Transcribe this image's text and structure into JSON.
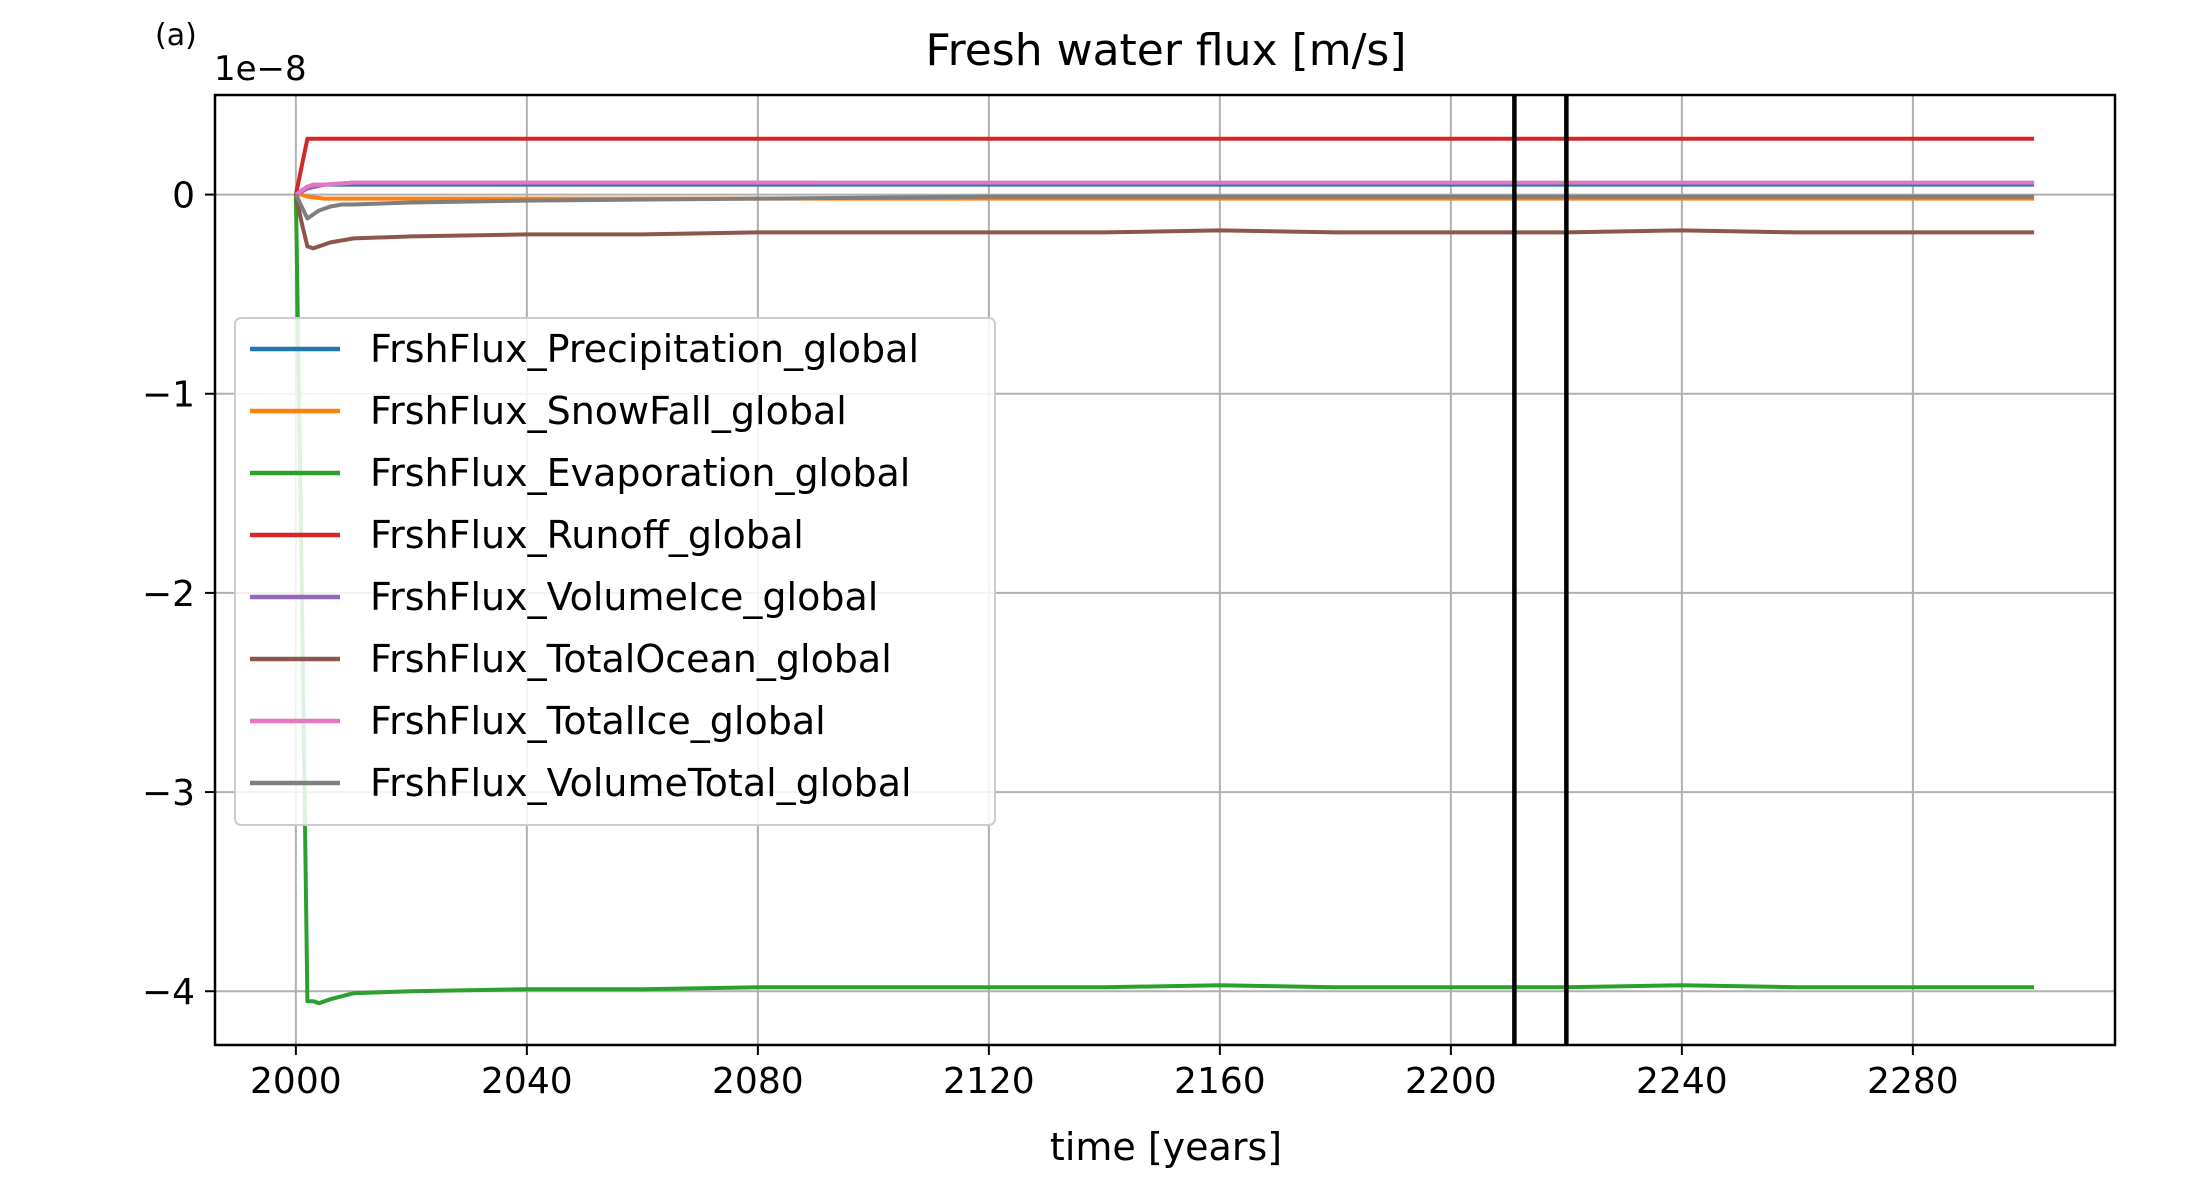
{
  "panel_label": "(a)",
  "chart_data": {
    "type": "line",
    "title": "Fresh water flux [m/s]",
    "xlabel": "time [years]",
    "ylabel": "",
    "y_multiplier": "1e−8",
    "xlim": [
      1986,
      2315
    ],
    "ylim": [
      -4.27,
      0.5
    ],
    "xticks": [
      2000,
      2040,
      2080,
      2120,
      2160,
      2200,
      2240,
      2280
    ],
    "yticks": [
      0,
      -1,
      -2,
      -3,
      -4
    ],
    "ytick_labels": [
      "0",
      "−1",
      "−2",
      "−3",
      "−4"
    ],
    "grid": true,
    "legend_position": "center-left",
    "vertical_markers": [
      2211,
      2220
    ],
    "series": [
      {
        "name": "FrshFlux_Precipitation_global",
        "color": "#1f77b4",
        "x": [
          2000,
          2001,
          2002,
          2005,
          2010,
          2040,
          2080,
          2120,
          2160,
          2200,
          2240,
          2280,
          2301
        ],
        "y": [
          0,
          0.02,
          0.04,
          0.05,
          0.05,
          0.05,
          0.05,
          0.05,
          0.05,
          0.05,
          0.05,
          0.05,
          0.05
        ]
      },
      {
        "name": "FrshFlux_SnowFall_global",
        "color": "#ff7f0e",
        "x": [
          2000,
          2001,
          2002,
          2005,
          2010,
          2040,
          2080,
          2120,
          2160,
          2200,
          2240,
          2280,
          2301
        ],
        "y": [
          0,
          0.0,
          -0.01,
          -0.02,
          -0.02,
          -0.02,
          -0.02,
          -0.02,
          -0.02,
          -0.02,
          -0.02,
          -0.02,
          -0.02
        ]
      },
      {
        "name": "FrshFlux_Evaporation_global",
        "color": "#2ca02c",
        "x": [
          2000,
          2001,
          2002,
          2003,
          2004,
          2006,
          2010,
          2020,
          2040,
          2060,
          2080,
          2100,
          2120,
          2140,
          2160,
          2180,
          2200,
          2220,
          2240,
          2260,
          2280,
          2301
        ],
        "y": [
          0,
          -1.9,
          -4.05,
          -4.05,
          -4.06,
          -4.04,
          -4.01,
          -4.0,
          -3.99,
          -3.99,
          -3.98,
          -3.98,
          -3.98,
          -3.98,
          -3.97,
          -3.98,
          -3.98,
          -3.98,
          -3.97,
          -3.98,
          -3.98,
          -3.98
        ]
      },
      {
        "name": "FrshFlux_Runoff_global",
        "color": "#d62728",
        "x": [
          2000,
          2001,
          2002,
          2003,
          2040,
          2080,
          2120,
          2160,
          2200,
          2240,
          2280,
          2301
        ],
        "y": [
          0,
          0.14,
          0.28,
          0.28,
          0.28,
          0.28,
          0.28,
          0.28,
          0.28,
          0.28,
          0.28,
          0.28
        ]
      },
      {
        "name": "FrshFlux_VolumeIce_global",
        "color": "#9467bd",
        "x": [
          2000,
          2002,
          2005,
          2010,
          2040,
          2080,
          2090
        ],
        "y": [
          0,
          0.03,
          0.05,
          0.06,
          0.06,
          0.06,
          0.06
        ]
      },
      {
        "name": "FrshFlux_TotalOcean_global",
        "color": "#8c564b",
        "x": [
          2000,
          2001,
          2002,
          2003,
          2004,
          2006,
          2010,
          2020,
          2040,
          2060,
          2080,
          2100,
          2120,
          2140,
          2160,
          2180,
          2200,
          2220,
          2240,
          2260,
          2280,
          2301
        ],
        "y": [
          0,
          -0.14,
          -0.26,
          -0.27,
          -0.26,
          -0.24,
          -0.22,
          -0.21,
          -0.2,
          -0.2,
          -0.19,
          -0.19,
          -0.19,
          -0.19,
          -0.18,
          -0.19,
          -0.19,
          -0.19,
          -0.18,
          -0.19,
          -0.19,
          -0.19
        ]
      },
      {
        "name": "FrshFlux_TotalIce_global",
        "color": "#e377c2",
        "x": [
          2000,
          2001,
          2002,
          2003,
          2005,
          2010,
          2040,
          2080,
          2120,
          2160,
          2200,
          2240,
          2280,
          2301
        ],
        "y": [
          0,
          0.02,
          0.04,
          0.05,
          0.05,
          0.06,
          0.06,
          0.06,
          0.06,
          0.06,
          0.06,
          0.06,
          0.06,
          0.06
        ]
      },
      {
        "name": "FrshFlux_VolumeTotal_global",
        "color": "#7f7f7f",
        "x": [
          2000,
          2001,
          2002,
          2003,
          2004,
          2006,
          2008,
          2010,
          2020,
          2040,
          2080,
          2120,
          2160,
          2200,
          2240,
          2280,
          2301
        ],
        "y": [
          0,
          -0.06,
          -0.12,
          -0.1,
          -0.08,
          -0.06,
          -0.05,
          -0.05,
          -0.04,
          -0.03,
          -0.02,
          -0.01,
          -0.01,
          -0.01,
          -0.01,
          -0.01,
          -0.01
        ]
      }
    ]
  }
}
